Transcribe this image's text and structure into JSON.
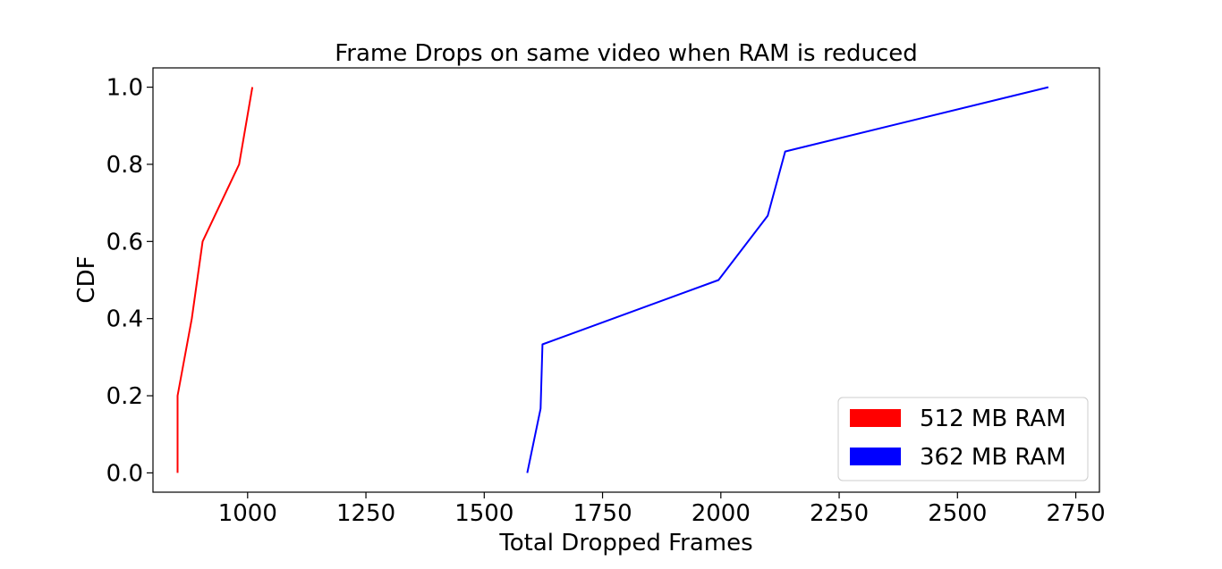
{
  "chart_data": {
    "type": "line",
    "title": "Frame Drops on same video when RAM is reduced",
    "xlabel": "Total Dropped Frames",
    "ylabel": "CDF",
    "xlim": [
      800,
      2800
    ],
    "ylim": [
      -0.05,
      1.05
    ],
    "xticks": [
      1000,
      1250,
      1500,
      1750,
      2000,
      2250,
      2500,
      2750
    ],
    "yticks": [
      0.0,
      0.2,
      0.4,
      0.6,
      0.8,
      1.0
    ],
    "ytick_labels": [
      "0.0",
      "0.2",
      "0.4",
      "0.6",
      "0.8",
      "1.0"
    ],
    "grid": false,
    "legend_position": "bottom-right",
    "series": [
      {
        "name": "512 MB RAM",
        "color": "#ff0000",
        "x": [
          852,
          852,
          882,
          905,
          982,
          1010
        ],
        "y": [
          0.0,
          0.2,
          0.4,
          0.6,
          0.8,
          1.0
        ]
      },
      {
        "name": "362 MB RAM",
        "color": "#0000ff",
        "x": [
          1591,
          1619,
          1623,
          1995,
          2099,
          2136,
          2692
        ],
        "y": [
          0.0,
          0.1667,
          0.3333,
          0.5,
          0.6667,
          0.8333,
          1.0
        ]
      }
    ]
  }
}
